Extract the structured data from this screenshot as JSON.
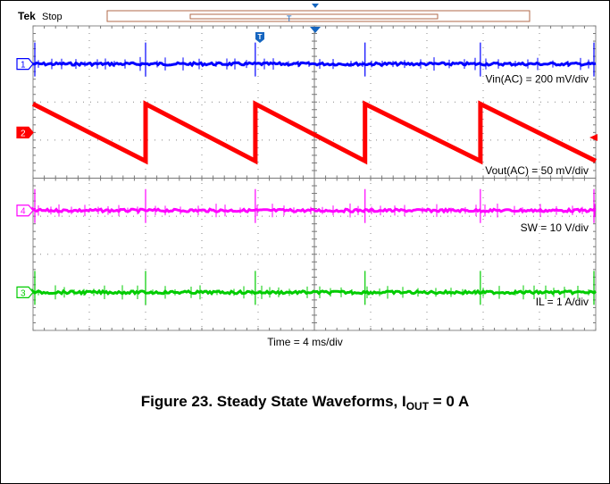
{
  "header": {
    "brand": "Tek",
    "status": "Stop"
  },
  "time_label": "Time = 4 ms/div",
  "caption": {
    "prefix": "Figure 23. Steady State Waveforms, I",
    "subscript": "OUT",
    "suffix": " = 0 A"
  },
  "colors": {
    "ch1": "#0000ff",
    "ch2": "#ff0000",
    "ch3": "#00cc00",
    "ch4": "#ff00ff",
    "grid": "#888888",
    "trigger_marker": "#1565c0"
  },
  "chart_data": {
    "type": "line",
    "title": "",
    "xlabel": "Time = 4 ms/div",
    "divisions": {
      "x": 10,
      "y": 8
    },
    "x": [
      0,
      40
    ],
    "x_unit": "ms",
    "grid": true,
    "series": [
      {
        "channel": "1",
        "name": "Vin(AC) = 200 mV/div",
        "color": "#0000ff",
        "marker_div": 7.0,
        "shape": "flat_with_spikes",
        "label_div": 6.6
      },
      {
        "channel": "2",
        "name": "Vout(AC) = 50 mV/div",
        "color": "#ff0000",
        "marker_div": 5.2,
        "shape": "sawtooth",
        "label_div": 4.2,
        "reset_times_ms": [
          0,
          8,
          15.8,
          23.6,
          31.8,
          40
        ],
        "ramp_top_div": 5.95,
        "ramp_bottom_div": 4.45
      },
      {
        "channel": "4",
        "name": "SW = 10 V/div",
        "color": "#ff00ff",
        "marker_div": 3.15,
        "shape": "flat_with_spikes",
        "label_div": 2.7
      },
      {
        "channel": "3",
        "name": "IL = 1 A/div",
        "color": "#00cc00",
        "marker_div": 1.0,
        "shape": "flat_with_spikes",
        "label_div": 0.75
      }
    ],
    "spike_times_ms": [
      0,
      8,
      15.8,
      23.6,
      31.8,
      40
    ]
  }
}
